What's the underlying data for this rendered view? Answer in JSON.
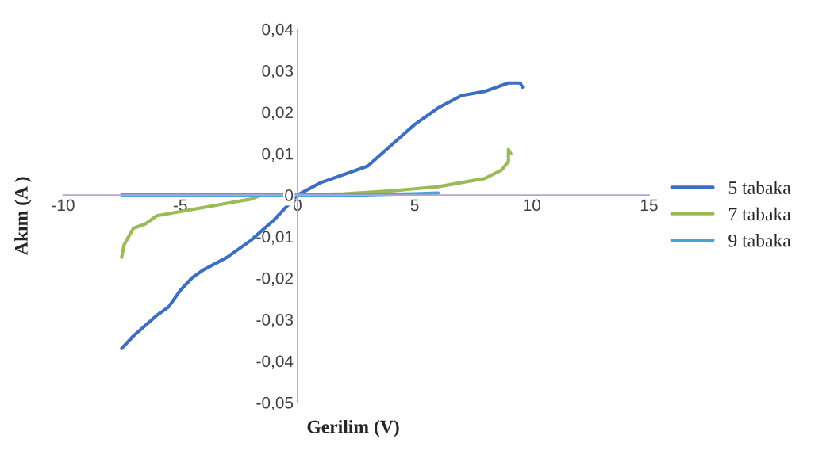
{
  "chart_data": {
    "type": "line",
    "xlabel": "Gerilim (V)",
    "ylabel": "Akım (A )",
    "xlim": [
      -10,
      15
    ],
    "xticks": [
      -10,
      -5,
      0,
      5,
      10,
      15
    ],
    "ylim": [
      -0.05,
      0.04
    ],
    "yticks": [
      {
        "value": -0.05,
        "label": "-0,05"
      },
      {
        "value": -0.04,
        "label": "-0,04"
      },
      {
        "value": -0.03,
        "label": "-0,03"
      },
      {
        "value": -0.02,
        "label": "-0,02"
      },
      {
        "value": -0.01,
        "label": "-0,01"
      },
      {
        "value": 0,
        "label": "0"
      },
      {
        "value": 0.01,
        "label": "0,01"
      },
      {
        "value": 0.02,
        "label": "0,02"
      },
      {
        "value": 0.03,
        "label": "0,03"
      },
      {
        "value": 0.04,
        "label": "0,04"
      }
    ],
    "grid": false,
    "legend": "right",
    "marker": "none",
    "line_style": "solid",
    "series": [
      {
        "name": "5 tabaka",
        "color": "#3c6fc0",
        "x": [
          -7.5,
          -7.0,
          -6.0,
          -5.5,
          -5.0,
          -4.5,
          -4.0,
          -3.0,
          -2.5,
          -2.0,
          -1.0,
          0,
          1.0,
          2.0,
          2.5,
          3.0,
          4.0,
          5.0,
          6.0,
          7.0,
          8.0,
          8.5,
          9.0,
          9.5,
          9.6
        ],
        "values": [
          -0.037,
          -0.034,
          -0.029,
          -0.027,
          -0.023,
          -0.02,
          -0.018,
          -0.015,
          -0.013,
          -0.011,
          -0.006,
          0.0,
          0.003,
          0.005,
          0.006,
          0.007,
          0.012,
          0.017,
          0.021,
          0.024,
          0.025,
          0.026,
          0.027,
          0.027,
          0.026
        ]
      },
      {
        "name": "7 tabaka",
        "color": "#9bbb59",
        "x": [
          -7.5,
          -7.4,
          -7.0,
          -6.5,
          -6.0,
          -5.0,
          -4.0,
          -3.0,
          -2.0,
          -1.5,
          0,
          2.0,
          4.0,
          5.0,
          6.0,
          7.0,
          8.0,
          8.7,
          9.0,
          9.0,
          9.1
        ],
        "values": [
          -0.015,
          -0.012,
          -0.008,
          -0.007,
          -0.005,
          -0.004,
          -0.003,
          -0.002,
          -0.001,
          0.0,
          0.0,
          0.0003,
          0.001,
          0.0015,
          0.002,
          0.003,
          0.004,
          0.006,
          0.008,
          0.011,
          0.01
        ]
      },
      {
        "name": "9 tabaka",
        "color": "#4aa3d8",
        "x": [
          -7.5,
          -5.0,
          -2.5,
          0,
          2.5,
          5.0,
          6.0
        ],
        "values": [
          0.0,
          0.0,
          0.0,
          0.0,
          0.0,
          0.0003,
          0.0005
        ]
      }
    ]
  }
}
